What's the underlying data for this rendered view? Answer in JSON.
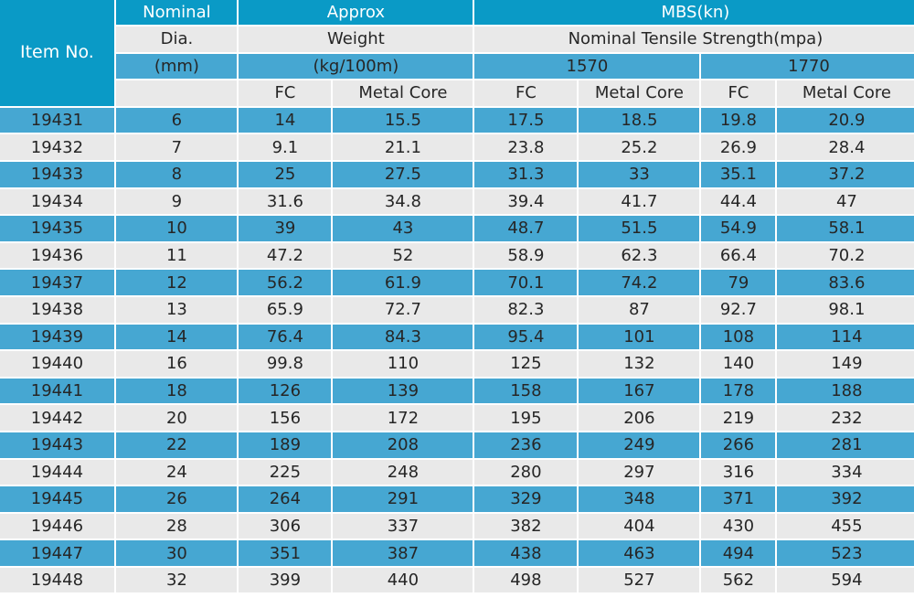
{
  "header": {
    "item_no": "Item No.",
    "nominal": "Nominal",
    "dia": "Dia.",
    "mm": "(mm)",
    "approx": "Approx",
    "weight": "Weight",
    "weight_unit": "(kg/100m)",
    "mbs": "MBS(kn)",
    "tensile": "Nominal Tensile Strength(mpa)",
    "strength_1570": "1570",
    "strength_1770": "1770",
    "fc": "FC",
    "metal_core": "Metal Core"
  },
  "colors": {
    "header_dark": "#0a9ac6",
    "row_blue": "#46a7d2",
    "row_gray": "#e9e9e9"
  },
  "rows": [
    [
      "19431",
      "6",
      "14",
      "15.5",
      "17.5",
      "18.5",
      "19.8",
      "20.9"
    ],
    [
      "19432",
      "7",
      "9.1",
      "21.1",
      "23.8",
      "25.2",
      "26.9",
      "28.4"
    ],
    [
      "19433",
      "8",
      "25",
      "27.5",
      "31.3",
      "33",
      "35.1",
      "37.2"
    ],
    [
      "19434",
      "9",
      "31.6",
      "34.8",
      "39.4",
      "41.7",
      "44.4",
      "47"
    ],
    [
      "19435",
      "10",
      "39",
      "43",
      "48.7",
      "51.5",
      "54.9",
      "58.1"
    ],
    [
      "19436",
      "11",
      "47.2",
      "52",
      "58.9",
      "62.3",
      "66.4",
      "70.2"
    ],
    [
      "19437",
      "12",
      "56.2",
      "61.9",
      "70.1",
      "74.2",
      "79",
      "83.6"
    ],
    [
      "19438",
      "13",
      "65.9",
      "72.7",
      "82.3",
      "87",
      "92.7",
      "98.1"
    ],
    [
      "19439",
      "14",
      "76.4",
      "84.3",
      "95.4",
      "101",
      "108",
      "114"
    ],
    [
      "19440",
      "16",
      "99.8",
      "110",
      "125",
      "132",
      "140",
      "149"
    ],
    [
      "19441",
      "18",
      "126",
      "139",
      "158",
      "167",
      "178",
      "188"
    ],
    [
      "19442",
      "20",
      "156",
      "172",
      "195",
      "206",
      "219",
      "232"
    ],
    [
      "19443",
      "22",
      "189",
      "208",
      "236",
      "249",
      "266",
      "281"
    ],
    [
      "19444",
      "24",
      "225",
      "248",
      "280",
      "297",
      "316",
      "334"
    ],
    [
      "19445",
      "26",
      "264",
      "291",
      "329",
      "348",
      "371",
      "392"
    ],
    [
      "19446",
      "28",
      "306",
      "337",
      "382",
      "404",
      "430",
      "455"
    ],
    [
      "19447",
      "30",
      "351",
      "387",
      "438",
      "463",
      "494",
      "523"
    ],
    [
      "19448",
      "32",
      "399",
      "440",
      "498",
      "527",
      "562",
      "594"
    ]
  ]
}
